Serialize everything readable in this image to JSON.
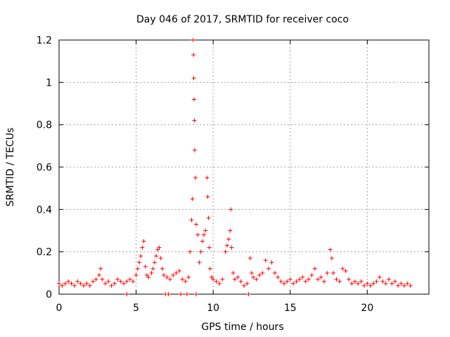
{
  "chart_data": {
    "type": "scatter",
    "title": "Day 046 of 2017, SRMTID for receiver coco",
    "xlabel": "GPS time / hours",
    "ylabel": "SRMTID / TECUs",
    "xlim": [
      0,
      24
    ],
    "ylim": [
      0,
      1.2
    ],
    "xticks": [
      0,
      5,
      10,
      15,
      20
    ],
    "yticks": [
      0,
      0.2,
      0.4,
      0.6,
      0.8,
      1,
      1.2
    ],
    "xtick_labels": [
      "0",
      "5",
      "10",
      "15",
      "20"
    ],
    "ytick_labels": [
      "0",
      "0.2",
      "0.4",
      "0.6",
      "0.8",
      "1",
      "1.2"
    ],
    "grid": true,
    "marker": "plus",
    "color": "#ff0000",
    "series": [
      {
        "name": "SRMTID",
        "x": [
          0.0,
          0.2,
          0.4,
          0.6,
          0.8,
          1.0,
          1.2,
          1.4,
          1.6,
          1.8,
          2.0,
          2.2,
          2.4,
          2.6,
          2.7,
          2.8,
          3.0,
          3.2,
          3.4,
          3.6,
          3.8,
          4.0,
          4.2,
          4.4,
          4.6,
          4.8,
          5.0,
          5.1,
          5.2,
          5.3,
          5.4,
          5.5,
          5.6,
          5.7,
          5.8,
          6.0,
          6.1,
          6.2,
          6.3,
          6.4,
          6.5,
          6.6,
          6.7,
          6.8,
          7.0,
          7.2,
          7.4,
          7.6,
          7.8,
          8.0,
          8.2,
          8.4,
          8.5,
          8.6,
          8.65,
          8.7,
          8.72,
          8.74,
          8.76,
          8.78,
          8.8,
          8.85,
          8.9,
          9.0,
          9.1,
          9.2,
          9.3,
          9.4,
          9.5,
          9.6,
          9.65,
          9.7,
          9.75,
          9.8,
          9.9,
          10.0,
          10.2,
          10.4,
          10.6,
          10.8,
          10.9,
          11.0,
          11.1,
          11.15,
          11.2,
          11.3,
          11.4,
          11.6,
          11.8,
          12.0,
          12.2,
          12.4,
          12.5,
          12.6,
          12.8,
          13.0,
          13.2,
          13.4,
          13.6,
          13.8,
          14.0,
          14.2,
          14.4,
          14.6,
          14.8,
          15.0,
          15.2,
          15.4,
          15.6,
          15.8,
          16.0,
          16.2,
          16.4,
          16.6,
          16.8,
          17.0,
          17.2,
          17.4,
          17.6,
          17.7,
          17.8,
          18.0,
          18.2,
          18.4,
          18.6,
          18.8,
          19.0,
          19.2,
          19.4,
          19.6,
          19.8,
          20.0,
          20.2,
          20.4,
          20.6,
          20.8,
          21.0,
          21.2,
          21.4,
          21.6,
          21.8,
          22.0,
          22.2,
          22.4,
          22.6,
          22.8,
          4.4,
          6.9,
          7.1,
          7.9,
          8.3,
          8.9,
          12.3
        ],
        "y": [
          0.05,
          0.04,
          0.05,
          0.06,
          0.05,
          0.04,
          0.06,
          0.05,
          0.04,
          0.05,
          0.04,
          0.06,
          0.07,
          0.09,
          0.12,
          0.07,
          0.05,
          0.06,
          0.04,
          0.05,
          0.07,
          0.06,
          0.05,
          0.06,
          0.07,
          0.06,
          0.09,
          0.12,
          0.15,
          0.18,
          0.22,
          0.25,
          0.13,
          0.09,
          0.08,
          0.1,
          0.12,
          0.15,
          0.18,
          0.21,
          0.22,
          0.17,
          0.12,
          0.09,
          0.08,
          0.07,
          0.09,
          0.1,
          0.11,
          0.07,
          0.06,
          0.08,
          0.2,
          0.35,
          0.45,
          1.2,
          1.13,
          1.02,
          0.92,
          0.82,
          0.68,
          0.55,
          0.33,
          0.28,
          0.15,
          0.2,
          0.25,
          0.28,
          0.3,
          0.55,
          0.46,
          0.36,
          0.22,
          0.12,
          0.08,
          0.07,
          0.06,
          0.05,
          0.07,
          0.2,
          0.23,
          0.26,
          0.3,
          0.4,
          0.22,
          0.1,
          0.07,
          0.08,
          0.06,
          0.04,
          0.05,
          0.17,
          0.1,
          0.08,
          0.07,
          0.09,
          0.1,
          0.16,
          0.12,
          0.15,
          0.1,
          0.08,
          0.06,
          0.05,
          0.06,
          0.07,
          0.05,
          0.06,
          0.07,
          0.08,
          0.06,
          0.07,
          0.09,
          0.12,
          0.07,
          0.08,
          0.06,
          0.1,
          0.21,
          0.17,
          0.1,
          0.07,
          0.06,
          0.12,
          0.11,
          0.07,
          0.05,
          0.06,
          0.05,
          0.06,
          0.04,
          0.05,
          0.04,
          0.05,
          0.06,
          0.08,
          0.06,
          0.05,
          0.07,
          0.05,
          0.06,
          0.04,
          0.05,
          0.04,
          0.05,
          0.04,
          0,
          0,
          0,
          0,
          0,
          0,
          0
        ]
      }
    ]
  }
}
